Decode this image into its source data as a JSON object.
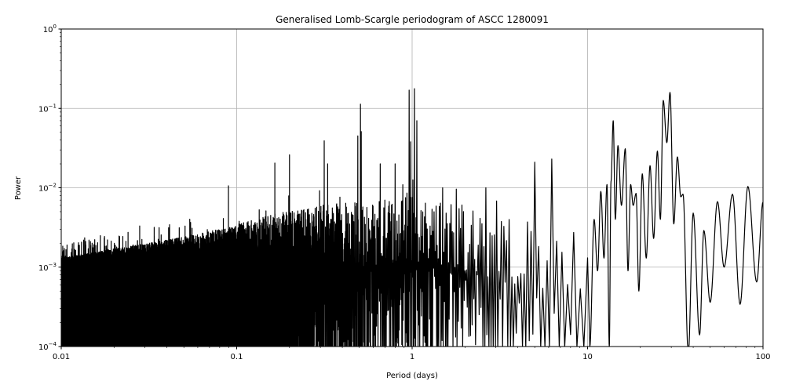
{
  "chart_data": {
    "type": "line",
    "title": "Generalised Lomb-Scargle periodogram of ASCC 1280091",
    "xlabel": "Period (days)",
    "ylabel": "Power",
    "xscale": "log",
    "yscale": "log",
    "xlim": [
      0.01,
      100
    ],
    "ylim": [
      0.0001,
      1
    ],
    "grid": true,
    "line_color": "#000000",
    "grid_color": "#b0b0b0",
    "x_ticks": [
      "0.01",
      "0.1",
      "1",
      "10",
      "100"
    ],
    "y_ticks": [
      {
        "base": "10",
        "exp": "−4"
      },
      {
        "base": "10",
        "exp": "−3"
      },
      {
        "base": "10",
        "exp": "−2"
      },
      {
        "base": "10",
        "exp": "−1"
      },
      {
        "base": "10",
        "exp": "0"
      }
    ],
    "short_period_envelope": [
      [
        0.01,
        0.0013
      ],
      [
        0.02,
        0.0017
      ],
      [
        0.04,
        0.0022
      ],
      [
        0.08,
        0.003
      ],
      [
        0.15,
        0.0045
      ],
      [
        0.3,
        0.006
      ],
      [
        0.6,
        0.007
      ],
      [
        1,
        0.008
      ],
      [
        2,
        0.006
      ],
      [
        4,
        0.004
      ],
      [
        10,
        0.003
      ]
    ],
    "short_period_peaks": [
      [
        0.028,
        0.0033
      ],
      [
        0.0898,
        0.0106
      ],
      [
        0.165,
        0.0205
      ],
      [
        0.2,
        0.026
      ],
      [
        0.315,
        0.039
      ],
      [
        0.49,
        0.045
      ],
      [
        0.507,
        0.113
      ],
      [
        0.512,
        0.051
      ],
      [
        0.96,
        0.17
      ],
      [
        0.98,
        0.038
      ],
      [
        1.03,
        0.177
      ],
      [
        1.06,
        0.07
      ],
      [
        4.96,
        0.021
      ],
      [
        6.1,
        0.023
      ],
      [
        0.33,
        0.02
      ],
      [
        0.66,
        0.02
      ],
      [
        0.8,
        0.02
      ],
      [
        1.5,
        0.01
      ],
      [
        2.6,
        0.01
      ]
    ],
    "long_period_extrema": [
      [
        10.3,
        0.0001
      ],
      [
        10.9,
        0.004
      ],
      [
        11.4,
        0.0009
      ],
      [
        11.9,
        0.009
      ],
      [
        12.4,
        0.0013
      ],
      [
        12.9,
        0.011
      ],
      [
        13.3,
        0.0001
      ],
      [
        13.6,
        0.012
      ],
      [
        14.0,
        0.07
      ],
      [
        14.4,
        0.004
      ],
      [
        14.9,
        0.034
      ],
      [
        15.6,
        0.006
      ],
      [
        16.4,
        0.031
      ],
      [
        17.0,
        0.0009
      ],
      [
        17.6,
        0.011
      ],
      [
        18.2,
        0.006
      ],
      [
        18.9,
        0.0085
      ],
      [
        19.6,
        0.0005
      ],
      [
        20.5,
        0.015
      ],
      [
        21.6,
        0.0013
      ],
      [
        22.7,
        0.019
      ],
      [
        23.8,
        0.0023
      ],
      [
        25.0,
        0.029
      ],
      [
        26.0,
        0.004
      ],
      [
        27.0,
        0.126
      ],
      [
        28.3,
        0.037
      ],
      [
        29.5,
        0.159
      ],
      [
        31.0,
        0.0035
      ],
      [
        32.5,
        0.0245
      ],
      [
        34.0,
        0.0077
      ],
      [
        35.0,
        0.0083
      ],
      [
        37.5,
        8e-05
      ],
      [
        40.0,
        0.0048
      ],
      [
        43.5,
        0.00014
      ],
      [
        46.0,
        0.0029
      ],
      [
        50.0,
        0.00036
      ],
      [
        55.0,
        0.0067
      ],
      [
        60.0,
        0.001
      ],
      [
        67.0,
        0.0083
      ],
      [
        74.0,
        0.00034
      ],
      [
        82.0,
        0.0104
      ],
      [
        92.0,
        0.00065
      ],
      [
        100.0,
        0.0066
      ]
    ]
  }
}
